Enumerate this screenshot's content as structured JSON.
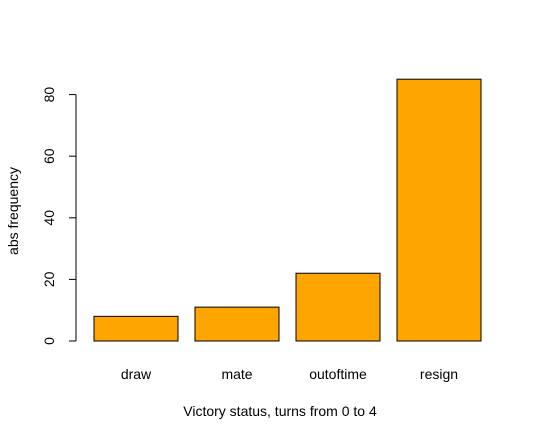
{
  "chart_data": {
    "type": "bar",
    "title": "",
    "categories": [
      "draw",
      "mate",
      "outoftime",
      "resign"
    ],
    "values": [
      8,
      11,
      22,
      85
    ],
    "xlabel": "Victory status, turns from 0 to  4",
    "ylabel": "abs frequency",
    "ylim": [
      0,
      85
    ],
    "yticks": [
      0,
      20,
      40,
      60,
      80
    ],
    "grid": false,
    "legend": "none",
    "colors": {
      "bar_fill": "#FFA500",
      "bar_stroke": "#000000",
      "axis": "#000000",
      "background": "#FFFFFF"
    }
  }
}
